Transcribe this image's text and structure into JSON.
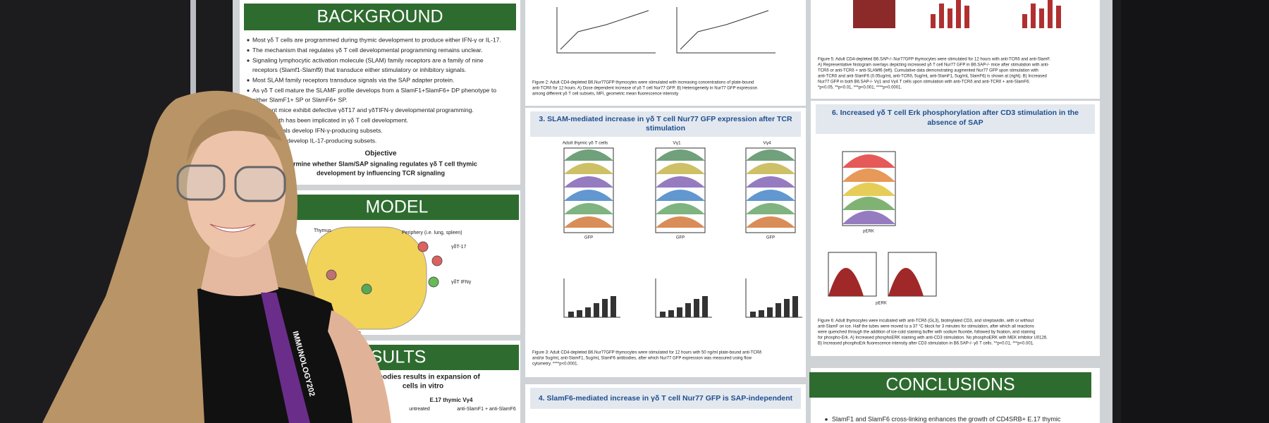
{
  "background": {
    "title": "BACKGROUND",
    "bullets": [
      [
        "Most γδ T cells are programmed during thymic development to produce either IFN-γ or IL-17."
      ],
      [
        "The mechanism that regulates γδ T cell developmental programming remains unclear."
      ],
      [
        "Signaling lymphocytic activation molecule (SLAM) family receptors are a family of nine",
        "receptors (Slamf1-Slamf9) that transduce either stimulatory or inhibitory signals."
      ],
      [
        "Most SLAM family receptors transduce signals via the SAP adapter protein."
      ],
      [
        "As γδ T cell mature the SLAMF profile develops from a SlamF1+SlamF6+ DP phenotype to",
        "either SlamF1+ SP or SlamF6+ SP."
      ],
      [
        "-deficient mice exhibit defective γδT17 and γδTIFN-γ developmental programming."
      ],
      [
        "nal strength has been implicated in γδ T cell development."
      ],
      [
        "g TCR signals develop IFN-γ-producing subsets."
      ],
      [
        "TCR signals develop IL-17-producing subsets."
      ]
    ],
    "objective_heading": "Objective",
    "objective": [
      "etermine whether Slam/SAP signaling regulates γδ T cell thymic",
      "development by influencing TCR signaling"
    ]
  },
  "model": {
    "title": "MODEL",
    "labels": [
      "Thymus",
      "Periphery (i.e. lung, spleen)",
      "γδT-17",
      "γδT IFNγ",
      "Mature"
    ]
  },
  "results": {
    "title": "SULTS",
    "lines": [
      "antibodies results in expansion of",
      "cells in vitro"
    ],
    "panel_title": "E.17 thymic Vγ4",
    "columns": [
      "untreated",
      "anti-SlamF1 + anti-SlamF6"
    ]
  },
  "figure2": {
    "caption": [
      "Figure 2: Adult CD4-depleted B6.Nur77GFP thymocytes were stimulated with increasing concentrations of plate-bound",
      "anti-TCRδ for 12 hours. A) Dose dependent increase of γδ T cell Nur77 GFP. B) Heterogeneity in Nur77 GFP expression",
      "among different γδ T cell subsets, MFI, geometric mean fluorescence intensity"
    ]
  },
  "section3": {
    "title": [
      "3. SLAM-mediated increase in γδ T cell Nur77 GFP expression after TCR",
      "stimulation"
    ],
    "panels": [
      "Adult thymic γδ T cells",
      "Vγ1",
      "Vγ4"
    ],
    "axis": "GFP",
    "caption": [
      "Figure 3: Adult CD4-depleted B6.Nur77GFP thymocytes were stimulated for 12 hours with 50 ng/ml plate-bound anti-TCRδ",
      "and/or 5ug/mL anti-SlamF1, 5ug/mL SlamF6 antibodies, after which Nur77 GFP expression was measured using flow",
      "cytometry. ****p<0.0001."
    ]
  },
  "section4": {
    "title": "4. SlamF6-mediated increase in γδ T cell Nur77 GFP is SAP-independent"
  },
  "figure5": {
    "caption": [
      "Figure 5: Adult CD4-depleted B6.SAP-/-.Nur77GFP thymocytes were stimulated for 12 hours with anti-TCRδ and anti-SlamF.",
      "A) Representative histogram overlays depicting increased γδ T cell Nur77 GFP in B6.SAP-/- mice after stimulation with anti-",
      "TCRδ or anti-TCRδ + anti-SLAMf6 (left). Cumulative data demonstrating augmented Nur77 GFP upon stimulation with",
      "anti-TCRδ and anti-SlamF6 (0.05ug/mL anti-TCRδ, 5ug/mL anti-SlamF1, 5ug/mL SlamF6) is shown at (right). B) Increased",
      "Nur77 GFP in both B6.SAP-/- Vγ1 and Vγ4 T cells upon stimulation with anti-TCRδ and anti-TCRδ + anti-SlamF6.",
      "*p<0.05, **p<0.01, ***p<0.001, ****p<0.0001."
    ]
  },
  "section6": {
    "title": [
      "6. Increased γδ T cell Erk phosphorylation after CD3 stimulation in the",
      "absence of SAP"
    ],
    "axis": "pERK",
    "caption": [
      "Figure 6: Adult thymocytes were incubated with anti-TCRδ (GL3), biotinylated CD3, and streptavidin, with or without",
      "anti-SlamF on ice. Half the tubes were moved to a 37 °C block for 3 minutes for stimulation, after which all reactions",
      "were quenched through the addition of ice-cold staining buffer with sodium fluoride, followed by fixation, and staining",
      "for phospho-Erk. A) Increased phosphoERK staining with anti-CD3 stimulation. No phosphoERK with MEK inhibitor U0126.",
      "B) Increased phosphoErk fluorescence intensity after CD3 stimulation in B6.SAP-/- γδ T cells. **p<0.01, ***p<0.001."
    ]
  },
  "conclusions": {
    "title": "CONCLUSIONS",
    "bullets": [
      "SlamF1 and SlamF6 cross-linking enhances the growth of CD4SRB+ E.17 thymic"
    ]
  },
  "lanyard": "IMMUNOLOGY202"
}
